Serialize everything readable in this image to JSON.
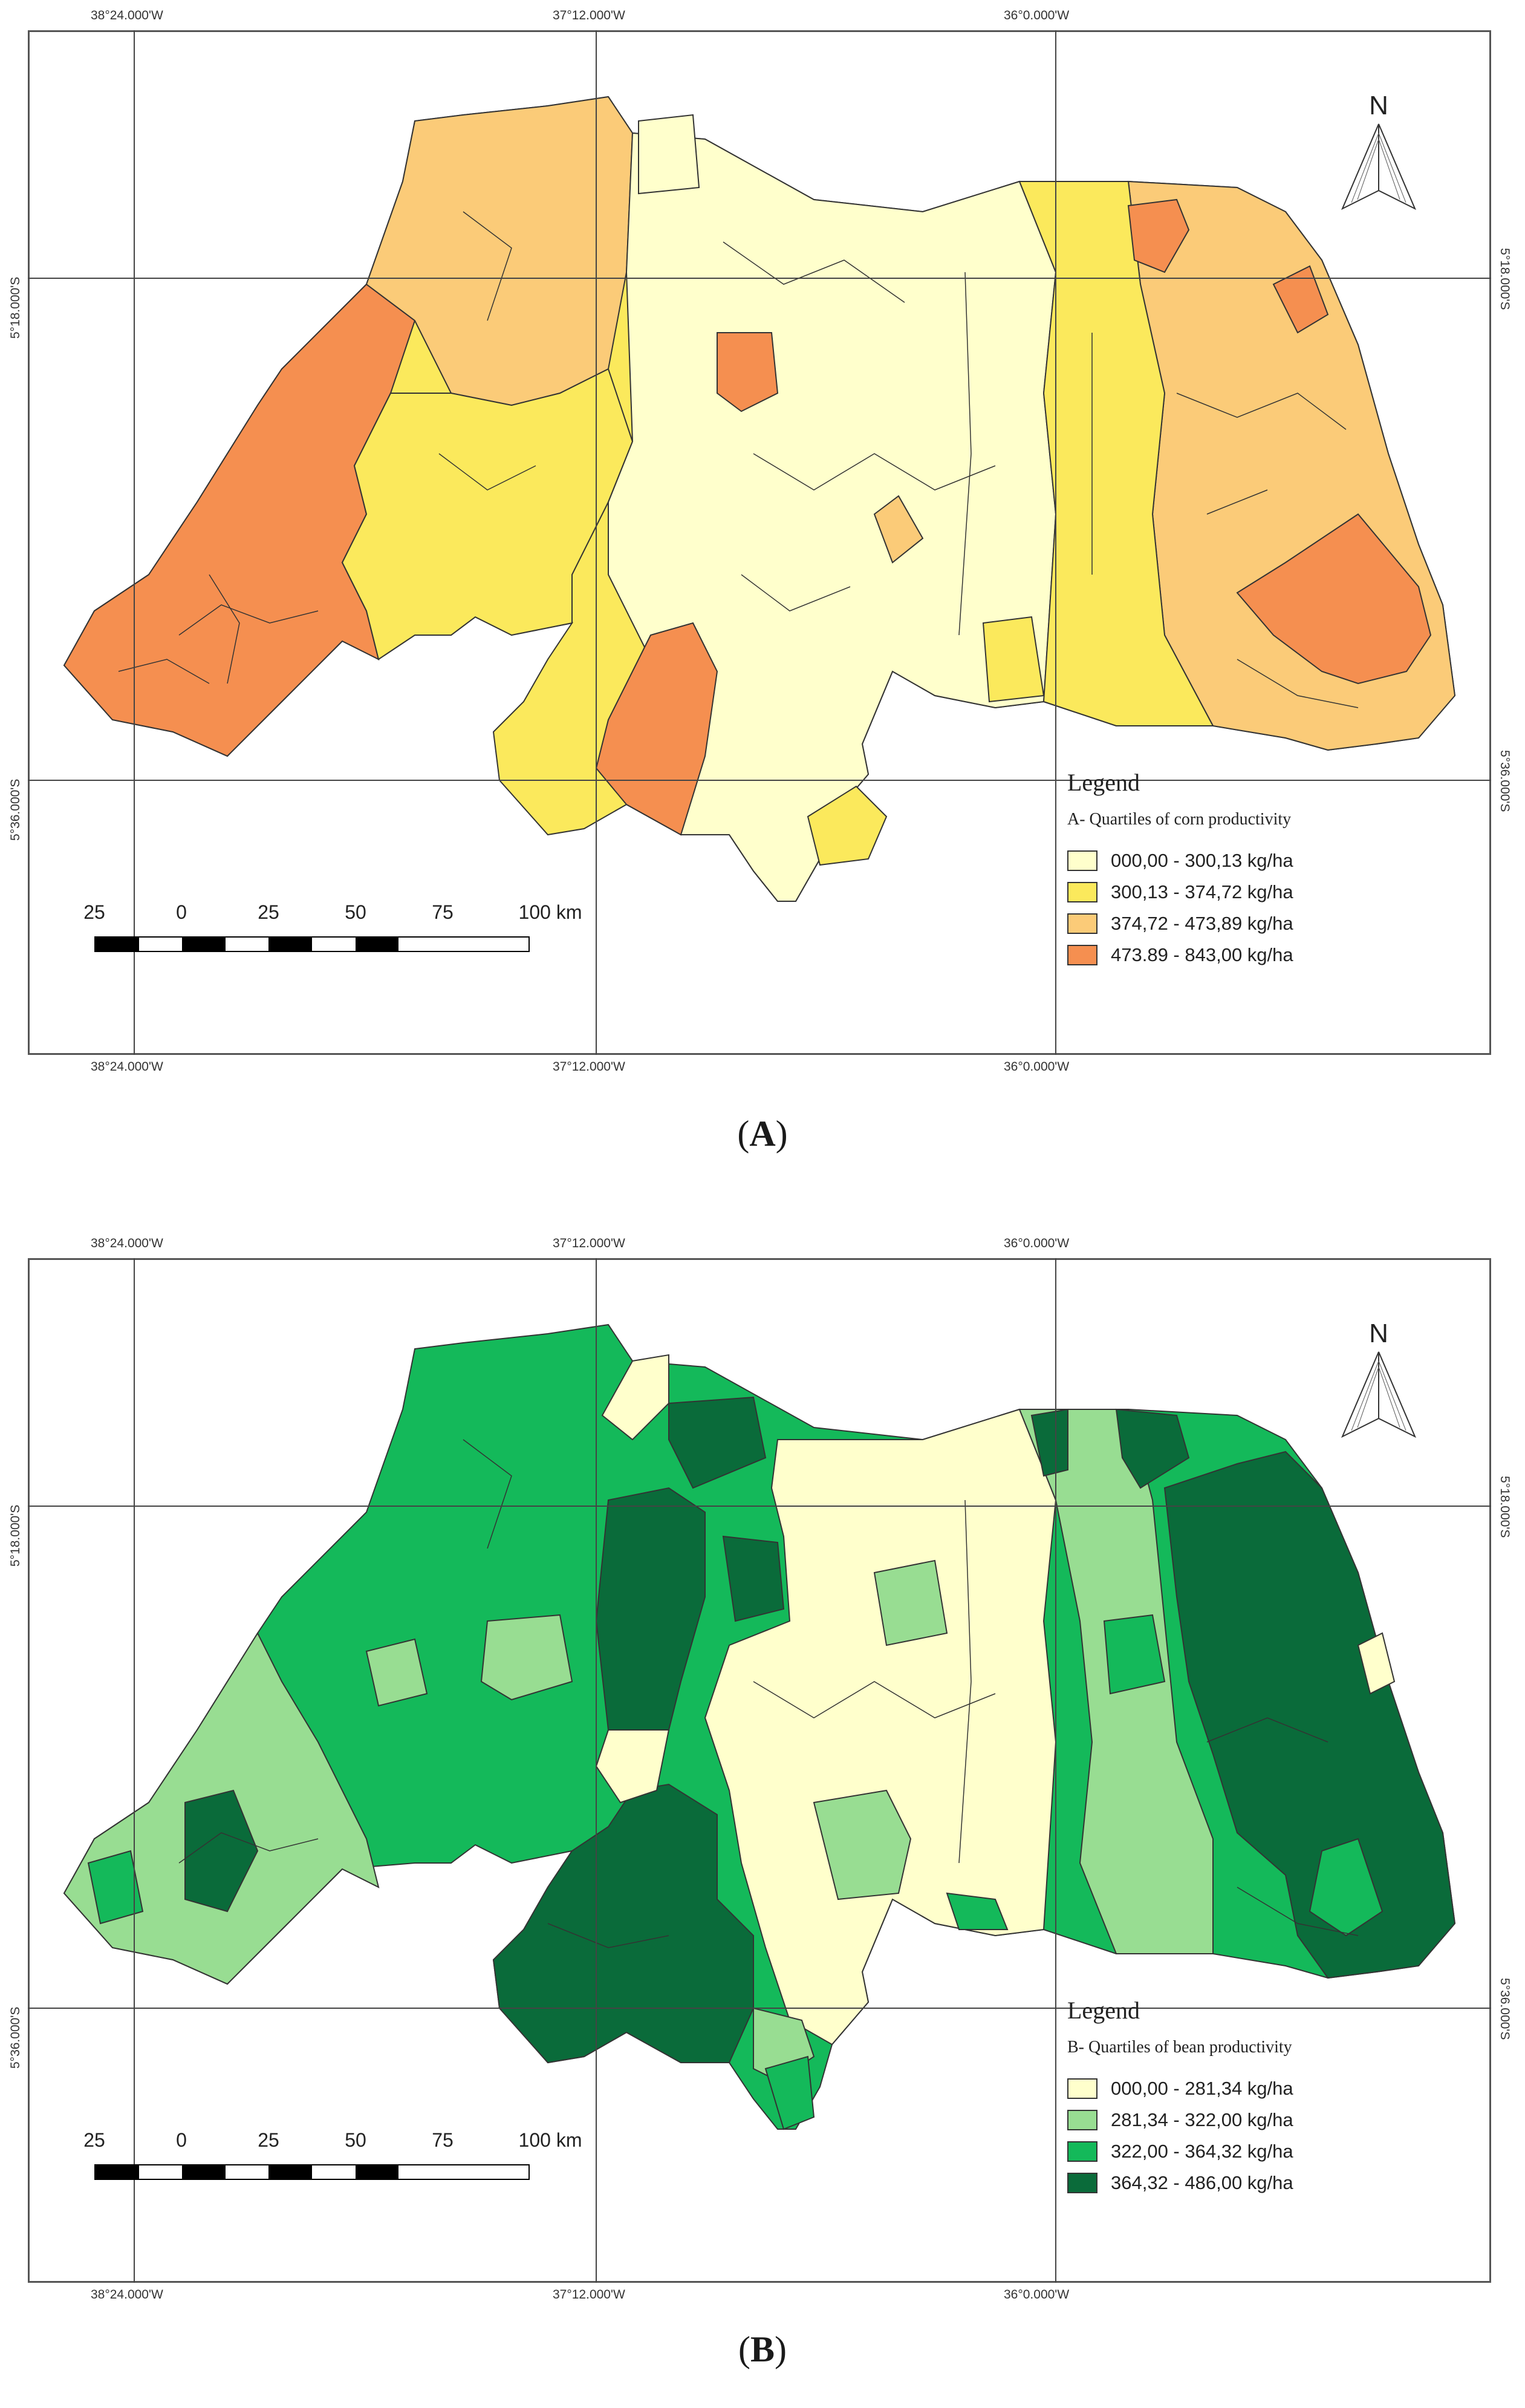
{
  "panels": [
    {
      "id": "A",
      "caption_letter": "A",
      "coords": {
        "top": [
          "38°24.000'W",
          "37°12.000'W",
          "36°0.000'W"
        ],
        "bottom": [
          "38°24.000'W",
          "37°12.000'W",
          "36°0.000'W"
        ],
        "right": [
          "5°18.000'S",
          "5°36.000'S"
        ],
        "left": [
          "5°18.000'S",
          "5°36.000'S"
        ]
      },
      "north": "N",
      "legend": {
        "title": "Legend",
        "subtitle": "A- Quartiles of corn productivity",
        "items": [
          {
            "label": "000,00 - 300,13 kg/ha",
            "color": "#ffffcc"
          },
          {
            "label": "300,13 - 374,72 kg/ha",
            "color": "#fbe95c"
          },
          {
            "label": "374,72 - 473,89 kg/ha",
            "color": "#fbcb78"
          },
          {
            "label": "473.89 - 843,00 kg/ha",
            "color": "#f58f50"
          }
        ]
      },
      "scale": {
        "labels": [
          "25",
          "0",
          "25",
          "50",
          "75",
          "100 km"
        ]
      }
    },
    {
      "id": "B",
      "caption_letter": "B",
      "coords": {
        "top": [
          "38°24.000'W",
          "37°12.000'W",
          "36°0.000'W"
        ],
        "bottom": [
          "38°24.000'W",
          "37°12.000'W",
          "36°0.000'W"
        ],
        "right": [
          "5°18.000'S",
          "5°36.000'S"
        ],
        "left": [
          "5°18.000'S",
          "5°36.000'S"
        ]
      },
      "north": "N",
      "legend": {
        "title": "Legend",
        "subtitle": "B- Quartiles of bean productivity",
        "items": [
          {
            "label": "000,00 - 281,34 kg/ha",
            "color": "#ffffcc"
          },
          {
            "label": "281,34 - 322,00 kg/ha",
            "color": "#98dd92"
          },
          {
            "label": "322,00 - 364,32 kg/ha",
            "color": "#14b95a"
          },
          {
            "label": "364,32 - 486,00 kg/ha",
            "color": "#0a6b3a"
          }
        ]
      },
      "scale": {
        "labels": [
          "25",
          "0",
          "25",
          "50",
          "75",
          "100 km"
        ]
      }
    }
  ]
}
